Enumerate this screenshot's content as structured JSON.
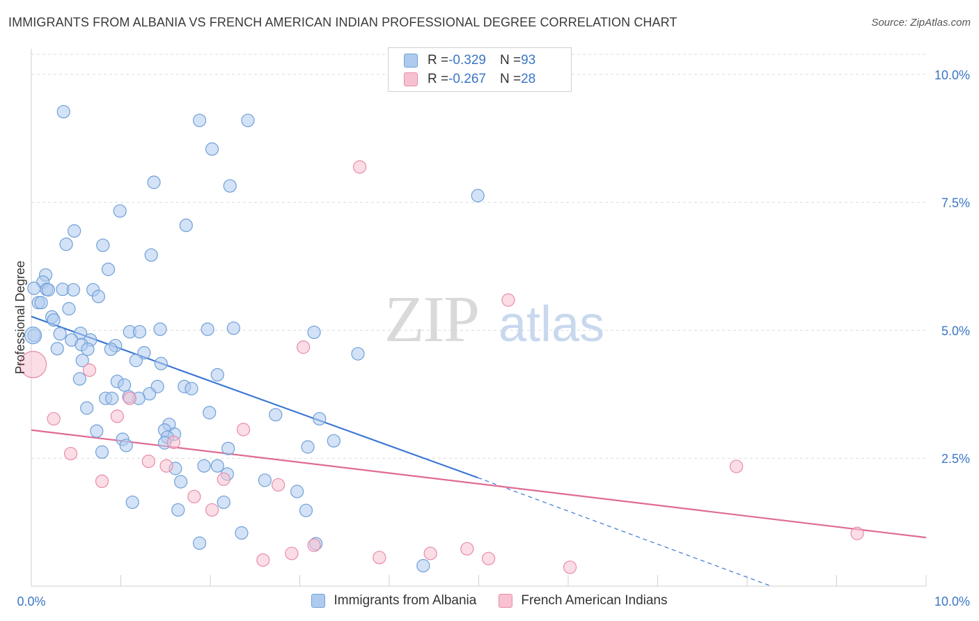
{
  "header": {
    "title": "IMMIGRANTS FROM ALBANIA VS FRENCH AMERICAN INDIAN PROFESSIONAL DEGREE CORRELATION CHART",
    "source": "Source: ZipAtlas.com"
  },
  "legend": {
    "rows": [
      {
        "r_label": "R = ",
        "r_value": "-0.329",
        "n_label": "N = ",
        "n_value": "93"
      },
      {
        "r_label": "R = ",
        "r_value": "-0.267",
        "n_label": "N = ",
        "n_value": "28"
      }
    ]
  },
  "watermark": {
    "zip": "ZIP",
    "atlas": "atlas"
  },
  "colors": {
    "blue_fill": "#aecbef",
    "blue_stroke": "#6f9fd8",
    "blue_line": "#3a76d4",
    "pink_fill": "#f7c1d1",
    "pink_stroke": "#e88ba8",
    "pink_line": "#e06a93",
    "tick_label": "#3a76c4",
    "grid": "#dcdcdc"
  },
  "chart_data": {
    "type": "scatter",
    "title": "IMMIGRANTS FROM ALBANIA VS FRENCH AMERICAN INDIAN PROFESSIONAL DEGREE CORRELATION CHART",
    "xlabel": "",
    "ylabel": "Professional Degree",
    "xlim": [
      0,
      10
    ],
    "ylim": [
      0,
      10.5
    ],
    "x_tick_labels": {
      "left": "0.0%",
      "right": "10.0%"
    },
    "y_ticks": [
      {
        "value": 2.5,
        "label": "2.5%"
      },
      {
        "value": 5.0,
        "label": "5.0%"
      },
      {
        "value": 7.5,
        "label": "7.5%"
      },
      {
        "value": 10.0,
        "label": "10.0%"
      }
    ],
    "series": [
      {
        "name": "Immigrants from Albania",
        "color": "blue",
        "points": [
          [
            0.36,
            9.27
          ],
          [
            1.88,
            9.1
          ],
          [
            2.42,
            9.1
          ],
          [
            2.02,
            8.54
          ],
          [
            1.37,
            7.89
          ],
          [
            2.22,
            7.82
          ],
          [
            4.99,
            7.63
          ],
          [
            0.99,
            7.33
          ],
          [
            1.73,
            7.05
          ],
          [
            0.48,
            6.94
          ],
          [
            0.39,
            6.68
          ],
          [
            0.8,
            6.66
          ],
          [
            1.34,
            6.47
          ],
          [
            0.86,
            6.19
          ],
          [
            0.16,
            6.08
          ],
          [
            0.13,
            5.94
          ],
          [
            0.03,
            5.82
          ],
          [
            0.17,
            5.8
          ],
          [
            0.35,
            5.8
          ],
          [
            0.19,
            5.79
          ],
          [
            0.47,
            5.79
          ],
          [
            0.69,
            5.79
          ],
          [
            0.75,
            5.66
          ],
          [
            0.08,
            5.54
          ],
          [
            0.11,
            5.54
          ],
          [
            0.42,
            5.42
          ],
          [
            0.23,
            5.26
          ],
          [
            0.25,
            5.2
          ],
          [
            1.44,
            5.02
          ],
          [
            1.97,
            5.02
          ],
          [
            2.26,
            5.04
          ],
          [
            1.1,
            4.97
          ],
          [
            1.21,
            4.97
          ],
          [
            3.16,
            4.96
          ],
          [
            0.03,
            4.9
          ],
          [
            0.32,
            4.93
          ],
          [
            0.55,
            4.94
          ],
          [
            0.45,
            4.81
          ],
          [
            0.66,
            4.81
          ],
          [
            0.56,
            4.72
          ],
          [
            0.94,
            4.7
          ],
          [
            0.63,
            4.63
          ],
          [
            0.29,
            4.64
          ],
          [
            0.89,
            4.63
          ],
          [
            1.26,
            4.56
          ],
          [
            3.65,
            4.54
          ],
          [
            1.17,
            4.41
          ],
          [
            0.57,
            4.41
          ],
          [
            1.45,
            4.35
          ],
          [
            2.08,
            4.13
          ],
          [
            0.54,
            4.05
          ],
          [
            0.96,
            4.0
          ],
          [
            1.04,
            3.93
          ],
          [
            1.41,
            3.9
          ],
          [
            1.71,
            3.9
          ],
          [
            1.79,
            3.86
          ],
          [
            1.32,
            3.76
          ],
          [
            0.83,
            3.67
          ],
          [
            0.9,
            3.67
          ],
          [
            1.2,
            3.67
          ],
          [
            1.09,
            3.7
          ],
          [
            0.62,
            3.48
          ],
          [
            1.99,
            3.39
          ],
          [
            2.73,
            3.35
          ],
          [
            3.22,
            3.27
          ],
          [
            1.54,
            3.16
          ],
          [
            1.49,
            3.05
          ],
          [
            0.73,
            3.03
          ],
          [
            1.6,
            2.97
          ],
          [
            1.52,
            2.91
          ],
          [
            1.02,
            2.87
          ],
          [
            3.38,
            2.84
          ],
          [
            1.49,
            2.8
          ],
          [
            1.06,
            2.75
          ],
          [
            3.09,
            2.72
          ],
          [
            2.2,
            2.69
          ],
          [
            0.79,
            2.62
          ],
          [
            1.61,
            2.3
          ],
          [
            1.93,
            2.35
          ],
          [
            2.08,
            2.35
          ],
          [
            2.19,
            2.19
          ],
          [
            2.61,
            2.07
          ],
          [
            1.67,
            2.04
          ],
          [
            2.97,
            1.85
          ],
          [
            1.13,
            1.64
          ],
          [
            2.15,
            1.64
          ],
          [
            1.64,
            1.49
          ],
          [
            3.07,
            1.48
          ],
          [
            2.35,
            1.04
          ],
          [
            1.88,
            0.84
          ],
          [
            3.18,
            0.83
          ],
          [
            4.38,
            0.4
          ],
          [
            0.02,
            4.9
          ]
        ],
        "trend": {
          "x0": 0,
          "y0": 5.27,
          "x1": 4.99,
          "y1": 2.12,
          "dash_x1": 8.27,
          "dash_y1": 0.0
        }
      },
      {
        "name": "French American Indians",
        "color": "pink",
        "points": [
          [
            0.02,
            4.33
          ],
          [
            3.67,
            8.19
          ],
          [
            5.33,
            5.59
          ],
          [
            3.04,
            4.67
          ],
          [
            0.65,
            4.22
          ],
          [
            0.25,
            3.27
          ],
          [
            0.96,
            3.32
          ],
          [
            1.1,
            3.67
          ],
          [
            2.37,
            3.06
          ],
          [
            1.59,
            2.81
          ],
          [
            0.44,
            2.59
          ],
          [
            1.31,
            2.44
          ],
          [
            1.51,
            2.35
          ],
          [
            2.15,
            2.09
          ],
          [
            0.79,
            2.05
          ],
          [
            2.76,
            1.98
          ],
          [
            1.82,
            1.75
          ],
          [
            2.02,
            1.49
          ],
          [
            7.88,
            2.34
          ],
          [
            9.23,
            1.03
          ],
          [
            3.16,
            0.8
          ],
          [
            2.91,
            0.64
          ],
          [
            4.46,
            0.64
          ],
          [
            4.87,
            0.73
          ],
          [
            3.89,
            0.56
          ],
          [
            5.11,
            0.54
          ],
          [
            2.59,
            0.51
          ],
          [
            6.02,
            0.37
          ]
        ],
        "trend": {
          "x0": 0,
          "y0": 3.05,
          "x1": 10,
          "y1": 0.95
        }
      }
    ]
  },
  "bottom_legend": {
    "items": [
      {
        "label": "Immigrants from Albania"
      },
      {
        "label": "French American Indians"
      }
    ]
  }
}
